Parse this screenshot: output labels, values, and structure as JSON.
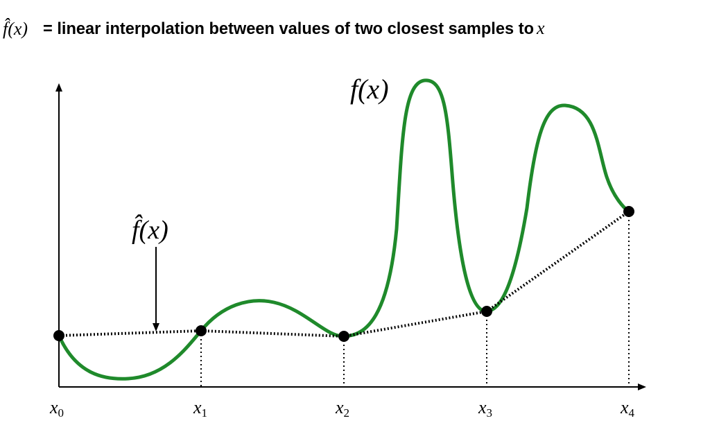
{
  "title": {
    "symbol": "f̂(x)",
    "text": "= linear interpolation between values of two closest samples to",
    "var": "x"
  },
  "labels": {
    "f_label": "f(x)",
    "fhat_label": "f̂(x)"
  },
  "samples": [
    {
      "name": "x0",
      "base": "x",
      "sub": "0"
    },
    {
      "name": "x1",
      "base": "x",
      "sub": "1"
    },
    {
      "name": "x2",
      "base": "x",
      "sub": "2"
    },
    {
      "name": "x3",
      "base": "x",
      "sub": "3"
    },
    {
      "name": "x4",
      "base": "x",
      "sub": "4"
    }
  ],
  "colors": {
    "curve": "#1f8a2b",
    "points": "#000000",
    "axes": "#000000"
  }
}
